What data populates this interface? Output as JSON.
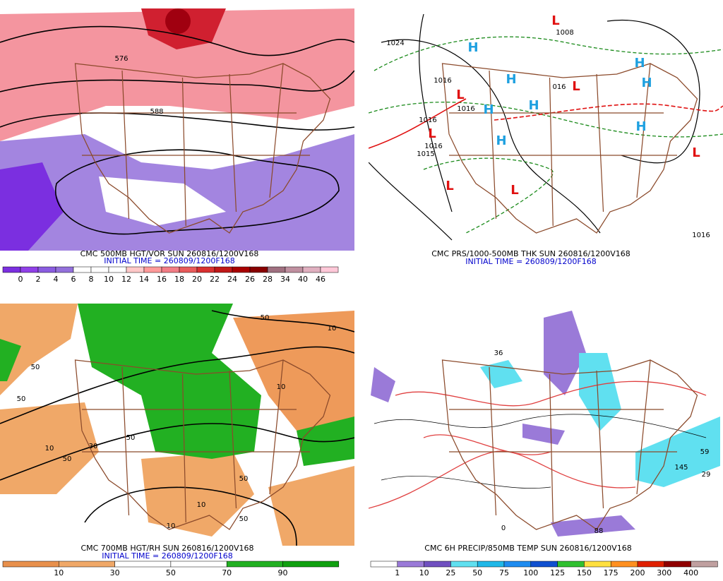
{
  "panels": [
    {
      "title": "CMC 500MB HGT/VOR SUN 260816/1200V168",
      "initial_time": "INITIAL TIME = 260809/1200F168",
      "colorbar": {
        "labels": [
          0,
          2,
          4,
          6,
          8,
          10,
          12,
          14,
          16,
          18,
          20,
          22,
          24,
          26,
          28,
          34,
          40,
          46
        ],
        "colors": [
          "#7b2fe0",
          "#9040e8",
          "#8a5ce0",
          "#9370db",
          "#ffffff",
          "#ffffff",
          "#ffffff",
          "#ffc8c8",
          "#ff9a9a",
          "#f27d86",
          "#e85a5a",
          "#d83030",
          "#c01818",
          "#a80000",
          "#880000",
          "#a07080",
          "#c090a0",
          "#e0b0c0",
          "#ffc8d8"
        ]
      },
      "contour_labels": [
        "576",
        "588"
      ]
    },
    {
      "title": "CMC PRS/1000-500MB THK SUN 260816/1200V168",
      "initial_time": "INITIAL TIME = 260809/1200F168",
      "contour_labels": [
        "1024",
        "1008",
        "1016",
        "1016",
        "1016",
        "1016",
        "1015",
        "016",
        "1016"
      ],
      "highs": [
        "H",
        "H",
        "H",
        "H",
        "H",
        "H",
        "H",
        "H"
      ],
      "lows": [
        "L",
        "L",
        "L",
        "L",
        "L",
        "L",
        "L"
      ]
    },
    {
      "title": "CMC 700MB HGT/RH SUN 260816/1200V168",
      "initial_time": "INITIAL TIME = 260809/1200F168",
      "colorbar": {
        "labels": [
          10,
          30,
          50,
          70,
          90
        ],
        "colors": [
          "#e8904c",
          "#f0a868",
          "#ffffff",
          "#ffffff",
          "#22b022",
          "#10a010"
        ]
      },
      "contour_labels": [
        "50",
        "50",
        "10",
        "50",
        "30",
        "50",
        "10",
        "50",
        "10",
        "10",
        "10",
        "50",
        "50"
      ]
    },
    {
      "title": "CMC 6H PRECIP/850MB TEMP SUN 260816/1200V168",
      "colorbar": {
        "labels": [
          1,
          10,
          25,
          50,
          75,
          100,
          125,
          150,
          175,
          200,
          300,
          400
        ],
        "colors": [
          "#ffffff",
          "#9a7ad8",
          "#7050c0",
          "#60e0f0",
          "#20b8e8",
          "#1e8cf0",
          "#1050d0",
          "#30c030",
          "#ffe040",
          "#ff9020",
          "#e02000",
          "#900000",
          "#c0a0a0"
        ]
      },
      "contour_labels": [
        "36",
        "145",
        "29",
        "0",
        "88",
        "59"
      ]
    }
  ]
}
